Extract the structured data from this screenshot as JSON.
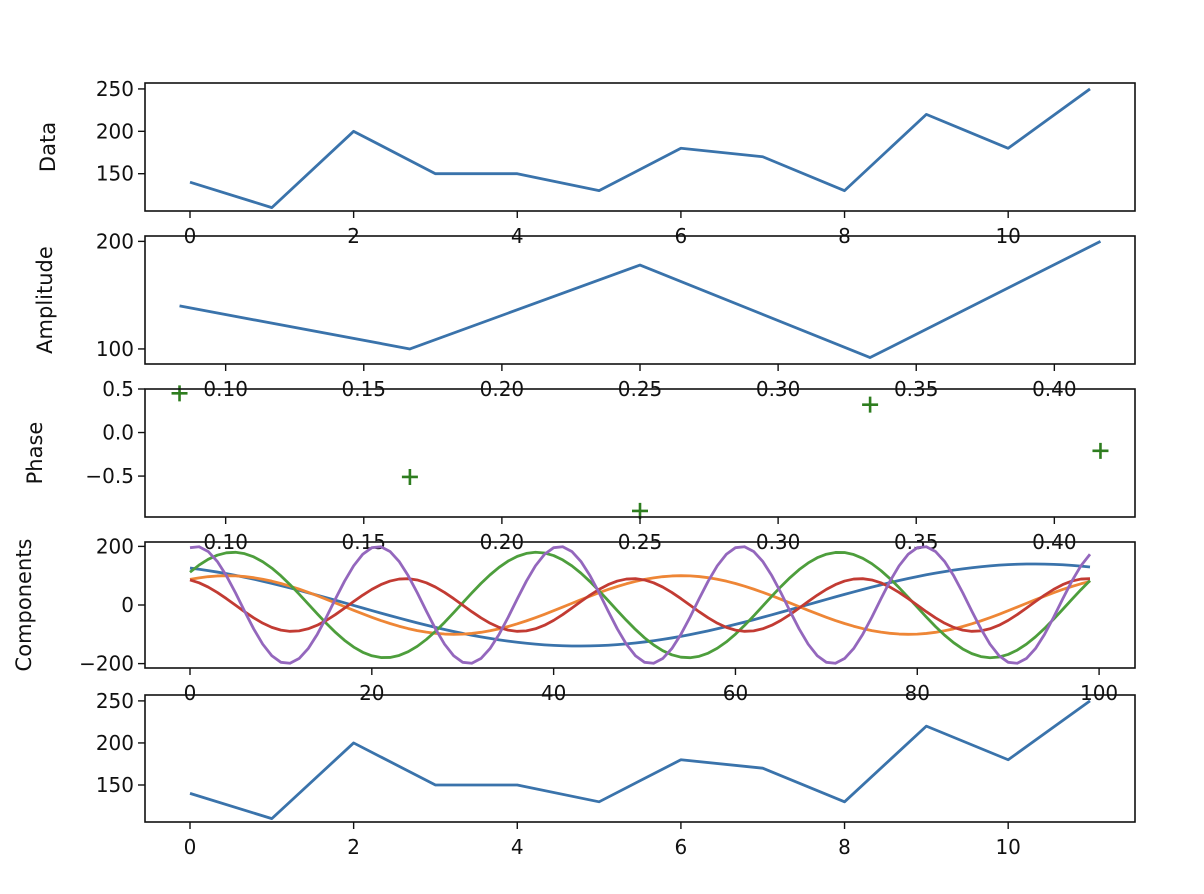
{
  "chart_data": [
    {
      "type": "line",
      "ylabel": "Data",
      "xlabel": "",
      "xlim": [
        -0.55,
        11.55
      ],
      "ylim": [
        106,
        257
      ],
      "xticks": [
        0,
        2,
        4,
        6,
        8,
        10
      ],
      "xtick_labels": [
        "0",
        "2",
        "4",
        "6",
        "8",
        "10"
      ],
      "yticks": [
        150,
        200,
        250
      ],
      "ytick_labels": [
        "150",
        "200",
        "250"
      ],
      "series": [
        {
          "color": "#3a73ab",
          "x": [
            0,
            1,
            2,
            3,
            4,
            5,
            6,
            7,
            8,
            9,
            10,
            11
          ],
          "y": [
            140,
            110,
            200,
            150,
            150,
            130,
            180,
            170,
            130,
            220,
            180,
            250
          ]
        }
      ]
    },
    {
      "type": "line",
      "ylabel": "Amplitude",
      "xlabel": "",
      "xlim": [
        0.0708,
        0.4292
      ],
      "ylim": [
        86,
        205
      ],
      "xticks": [
        0.1,
        0.15,
        0.2,
        0.25,
        0.3,
        0.35,
        0.4
      ],
      "xtick_labels": [
        "0.10",
        "0.15",
        "0.20",
        "0.25",
        "0.30",
        "0.35",
        "0.40"
      ],
      "yticks": [
        100,
        200
      ],
      "ytick_labels": [
        "100",
        "200"
      ],
      "series": [
        {
          "color": "#3a73ab",
          "x": [
            0.0833,
            0.1667,
            0.25,
            0.3333,
            0.4167
          ],
          "y": [
            140,
            100,
            178,
            92,
            200
          ]
        }
      ]
    },
    {
      "type": "scatter",
      "ylabel": "Phase",
      "xlabel": "",
      "xlim": [
        0.0708,
        0.4292
      ],
      "ylim": [
        -0.97,
        0.5
      ],
      "xticks": [
        0.1,
        0.15,
        0.2,
        0.25,
        0.3,
        0.35,
        0.4
      ],
      "xtick_labels": [
        "0.10",
        "0.15",
        "0.20",
        "0.25",
        "0.30",
        "0.35",
        "0.40"
      ],
      "yticks": [
        -0.5,
        0.0,
        0.5
      ],
      "ytick_labels": [
        "−0.5",
        "0.0",
        "0.5"
      ],
      "marker": "+",
      "series": [
        {
          "color": "#2e7d1f",
          "x": [
            0.0833,
            0.1667,
            0.25,
            0.3333,
            0.4167
          ],
          "y": [
            0.45,
            -0.51,
            -0.9,
            0.32,
            -0.21
          ]
        }
      ]
    },
    {
      "type": "line",
      "ylabel": "Components",
      "xlabel": "",
      "xlim": [
        -4.95,
        103.95
      ],
      "ylim": [
        -215,
        215
      ],
      "xticks": [
        0,
        20,
        40,
        60,
        80,
        100
      ],
      "xtick_labels": [
        "0",
        "20",
        "40",
        "60",
        "80",
        "100"
      ],
      "yticks": [
        -200,
        0,
        200
      ],
      "ytick_labels": [
        "−200",
        "0",
        "200"
      ],
      "n_points": 100,
      "series": [
        {
          "color": "#3a73ab",
          "amplitude": 140,
          "cycles": 1,
          "phase": 0.45
        },
        {
          "color": "#ee8636",
          "amplitude": 100,
          "cycles": 2,
          "phase": -0.51
        },
        {
          "color": "#4d9e3c",
          "amplitude": 180,
          "cycles": 3,
          "phase": -0.9
        },
        {
          "color": "#c23b33",
          "amplitude": 90,
          "cycles": 4,
          "phase": 0.32
        },
        {
          "color": "#9467bd",
          "amplitude": 200,
          "cycles": 5,
          "phase": -0.21
        }
      ]
    },
    {
      "type": "line",
      "ylabel": "",
      "xlabel": "",
      "xlim": [
        -0.55,
        11.55
      ],
      "ylim": [
        106,
        257
      ],
      "xticks": [
        0,
        2,
        4,
        6,
        8,
        10
      ],
      "xtick_labels": [
        "0",
        "2",
        "4",
        "6",
        "8",
        "10"
      ],
      "yticks": [
        150,
        200,
        250
      ],
      "ytick_labels": [
        "150",
        "200",
        "250"
      ],
      "series": [
        {
          "color": "#3a73ab",
          "x": [
            0,
            1,
            2,
            3,
            4,
            5,
            6,
            7,
            8,
            9,
            10,
            11
          ],
          "y": [
            140,
            110,
            200,
            150,
            150,
            130,
            180,
            170,
            130,
            220,
            180,
            250
          ]
        }
      ]
    }
  ]
}
